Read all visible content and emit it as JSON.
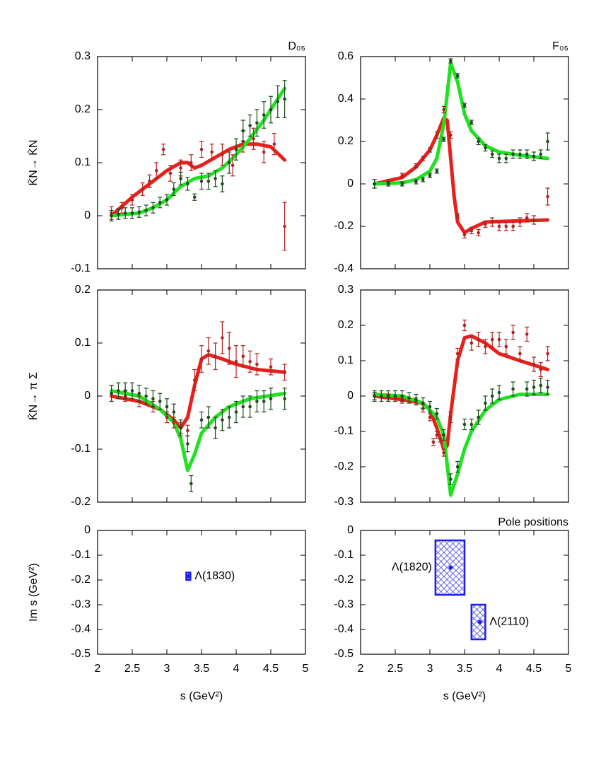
{
  "chart_data": [
    {
      "type": "errorbar",
      "title": "D₀₅",
      "ylabel": "K̄N→ K̄N",
      "xlim": [
        2,
        5
      ],
      "xticks": [
        2,
        2.5,
        3,
        3.5,
        4,
        4.5,
        5
      ],
      "xtick_labels": false,
      "ylim": [
        -0.1,
        0.3
      ],
      "yticks": [
        -0.1,
        0,
        0.1,
        0.2,
        0.3
      ],
      "series": [
        {
          "mode": "band",
          "color": "#e8201c",
          "x": [
            2.2,
            2.5,
            2.8,
            3.0,
            3.2,
            3.3,
            3.4,
            3.5,
            3.7,
            3.9,
            4.1,
            4.3,
            4.5,
            4.7
          ],
          "values": [
            0.0,
            0.035,
            0.065,
            0.085,
            0.1,
            0.1,
            0.09,
            0.095,
            0.11,
            0.125,
            0.135,
            0.135,
            0.13,
            0.105
          ]
        },
        {
          "mode": "band",
          "color": "#22e022",
          "x": [
            2.2,
            2.6,
            2.8,
            3.0,
            3.2,
            3.4,
            3.6,
            3.8,
            4.0,
            4.2,
            4.4,
            4.6,
            4.7
          ],
          "values": [
            0.0,
            0.005,
            0.015,
            0.03,
            0.055,
            0.07,
            0.075,
            0.09,
            0.115,
            0.145,
            0.18,
            0.22,
            0.24
          ]
        },
        {
          "mode": "points",
          "color": "#b22222",
          "x": [
            2.2,
            2.35,
            2.5,
            2.65,
            2.75,
            2.85,
            2.95,
            3.05,
            3.2,
            3.35,
            3.5,
            3.65,
            3.8,
            3.95,
            4.1,
            4.25,
            4.4,
            4.55,
            4.7
          ],
          "values": [
            0.005,
            0.015,
            0.03,
            0.05,
            0.065,
            0.085,
            0.125,
            0.08,
            0.09,
            0.1,
            0.125,
            0.12,
            0.115,
            0.095,
            0.14,
            0.145,
            0.12,
            0.135,
            -0.02
          ],
          "errors": [
            0.012,
            0.01,
            0.01,
            0.012,
            0.012,
            0.015,
            0.01,
            0.015,
            0.015,
            0.015,
            0.015,
            0.015,
            0.02,
            0.02,
            0.02,
            0.02,
            0.02,
            0.02,
            0.045
          ]
        },
        {
          "mode": "points",
          "color": "#1c4d1c",
          "x": [
            2.2,
            2.3,
            2.4,
            2.5,
            2.6,
            2.7,
            2.8,
            2.9,
            3.0,
            3.1,
            3.2,
            3.3,
            3.4,
            3.5,
            3.6,
            3.7,
            3.8,
            3.9,
            4.0,
            4.1,
            4.2,
            4.3,
            4.4,
            4.5,
            4.6,
            4.7
          ],
          "values": [
            0.0,
            0.003,
            0.005,
            0.005,
            0.007,
            0.01,
            0.015,
            0.025,
            0.03,
            0.05,
            0.07,
            0.06,
            0.035,
            0.065,
            0.065,
            0.07,
            0.06,
            0.1,
            0.125,
            0.16,
            0.17,
            0.175,
            0.19,
            0.2,
            0.215,
            0.22
          ],
          "errors": [
            0.01,
            0.01,
            0.01,
            0.01,
            0.01,
            0.01,
            0.01,
            0.01,
            0.01,
            0.012,
            0.012,
            0.012,
            0.006,
            0.015,
            0.015,
            0.015,
            0.015,
            0.02,
            0.02,
            0.02,
            0.02,
            0.025,
            0.025,
            0.025,
            0.03,
            0.035
          ]
        }
      ]
    },
    {
      "type": "errorbar",
      "title": "F₀₅",
      "xlim": [
        2,
        5
      ],
      "xticks": [
        2,
        2.5,
        3,
        3.5,
        4,
        4.5,
        5
      ],
      "xtick_labels": false,
      "ylim": [
        -0.4,
        0.6
      ],
      "yticks": [
        -0.4,
        -0.2,
        0,
        0.2,
        0.4,
        0.6
      ],
      "series": [
        {
          "mode": "band",
          "color": "#e8201c",
          "x": [
            2.2,
            2.6,
            2.8,
            3.0,
            3.1,
            3.2,
            3.25,
            3.3,
            3.35,
            3.4,
            3.5,
            3.6,
            3.8,
            4.2,
            4.7
          ],
          "values": [
            0.0,
            0.03,
            0.08,
            0.16,
            0.23,
            0.31,
            0.3,
            0.12,
            -0.06,
            -0.18,
            -0.23,
            -0.21,
            -0.18,
            -0.175,
            -0.17
          ]
        },
        {
          "mode": "band",
          "color": "#22e022",
          "x": [
            2.2,
            2.6,
            2.8,
            3.0,
            3.1,
            3.2,
            3.3,
            3.4,
            3.5,
            3.6,
            3.8,
            4.0,
            4.3,
            4.7
          ],
          "values": [
            0.0,
            0.005,
            0.02,
            0.06,
            0.12,
            0.28,
            0.57,
            0.48,
            0.33,
            0.25,
            0.18,
            0.15,
            0.135,
            0.12
          ]
        },
        {
          "mode": "points",
          "color": "#b22222",
          "x": [
            2.2,
            2.4,
            2.6,
            2.8,
            2.9,
            3.0,
            3.1,
            3.2,
            3.3,
            3.4,
            3.5,
            3.6,
            3.7,
            3.8,
            3.9,
            4.0,
            4.1,
            4.2,
            4.3,
            4.4,
            4.5,
            4.7
          ],
          "values": [
            0.0,
            0.01,
            0.04,
            0.085,
            0.12,
            0.16,
            0.23,
            0.35,
            0.23,
            -0.15,
            -0.24,
            -0.22,
            -0.23,
            -0.19,
            -0.18,
            -0.2,
            -0.2,
            -0.2,
            -0.18,
            -0.16,
            -0.17,
            -0.06
          ],
          "errors": [
            0.02,
            0.01,
            0.01,
            0.01,
            0.01,
            0.01,
            0.015,
            0.015,
            0.015,
            0.01,
            0.015,
            0.015,
            0.015,
            0.015,
            0.02,
            0.02,
            0.02,
            0.02,
            0.02,
            0.02,
            0.02,
            0.04
          ]
        },
        {
          "mode": "points",
          "color": "#1c4d1c",
          "x": [
            2.2,
            2.4,
            2.6,
            2.8,
            2.9,
            3.0,
            3.1,
            3.2,
            3.3,
            3.4,
            3.5,
            3.6,
            3.7,
            3.8,
            3.9,
            4.0,
            4.1,
            4.2,
            4.3,
            4.4,
            4.5,
            4.6,
            4.7
          ],
          "values": [
            0.0,
            0.0,
            0.0,
            0.01,
            0.02,
            0.04,
            0.06,
            0.21,
            0.58,
            0.51,
            0.37,
            0.29,
            0.2,
            0.17,
            0.14,
            0.12,
            0.12,
            0.14,
            0.14,
            0.14,
            0.13,
            0.14,
            0.2
          ],
          "errors": [
            0.02,
            0.01,
            0.01,
            0.01,
            0.01,
            0.01,
            0.01,
            0.01,
            0.01,
            0.01,
            0.01,
            0.01,
            0.015,
            0.015,
            0.015,
            0.02,
            0.02,
            0.02,
            0.02,
            0.02,
            0.02,
            0.02,
            0.04
          ]
        }
      ]
    },
    {
      "type": "errorbar",
      "ylabel": "K̄N→ π Σ",
      "xlim": [
        2,
        5
      ],
      "xticks": [
        2,
        2.5,
        3,
        3.5,
        4,
        4.5,
        5
      ],
      "xtick_labels": false,
      "ylim": [
        -0.2,
        0.2
      ],
      "yticks": [
        -0.2,
        -0.1,
        0,
        0.1,
        0.2
      ],
      "series": [
        {
          "mode": "band",
          "color": "#e8201c",
          "x": [
            2.2,
            2.6,
            2.9,
            3.1,
            3.2,
            3.3,
            3.4,
            3.5,
            3.6,
            3.8,
            4.0,
            4.3,
            4.7
          ],
          "values": [
            0.0,
            -0.01,
            -0.025,
            -0.045,
            -0.06,
            -0.04,
            0.02,
            0.07,
            0.078,
            0.07,
            0.06,
            0.05,
            0.045
          ]
        },
        {
          "mode": "band",
          "color": "#22e022",
          "x": [
            2.2,
            2.6,
            2.9,
            3.1,
            3.2,
            3.3,
            3.4,
            3.5,
            3.7,
            3.9,
            4.2,
            4.7
          ],
          "values": [
            0.01,
            0.0,
            -0.025,
            -0.05,
            -0.08,
            -0.14,
            -0.11,
            -0.07,
            -0.04,
            -0.02,
            -0.005,
            0.005
          ]
        },
        {
          "mode": "points",
          "color": "#b22222",
          "x": [
            2.2,
            2.4,
            2.6,
            2.8,
            3.0,
            3.1,
            3.2,
            3.3,
            3.4,
            3.5,
            3.6,
            3.7,
            3.8,
            3.9,
            4.0,
            4.1,
            4.2,
            4.3,
            4.5,
            4.7
          ],
          "values": [
            0.005,
            0.0,
            -0.01,
            -0.02,
            -0.04,
            -0.05,
            -0.06,
            -0.065,
            0.03,
            0.07,
            0.085,
            0.075,
            0.11,
            0.09,
            0.065,
            0.075,
            0.065,
            0.06,
            0.055,
            0.045
          ],
          "errors": [
            0.015,
            0.01,
            0.01,
            0.01,
            0.01,
            0.01,
            0.01,
            0.01,
            0.02,
            0.025,
            0.025,
            0.025,
            0.03,
            0.03,
            0.03,
            0.02,
            0.02,
            0.02,
            0.015,
            0.015
          ]
        },
        {
          "mode": "points",
          "color": "#1c4d1c",
          "x": [
            2.2,
            2.3,
            2.4,
            2.5,
            2.6,
            2.7,
            2.8,
            2.9,
            3.0,
            3.1,
            3.2,
            3.3,
            3.35,
            3.5,
            3.6,
            3.7,
            3.8,
            3.9,
            4.0,
            4.1,
            4.2,
            4.3,
            4.4,
            4.5,
            4.7
          ],
          "values": [
            0.005,
            0.01,
            0.01,
            0.01,
            0.005,
            0.0,
            -0.005,
            -0.01,
            -0.02,
            -0.03,
            -0.06,
            -0.09,
            -0.165,
            -0.045,
            -0.04,
            -0.06,
            -0.045,
            -0.04,
            -0.03,
            -0.02,
            -0.02,
            -0.01,
            -0.01,
            -0.005,
            -0.005
          ],
          "errors": [
            0.015,
            0.015,
            0.015,
            0.015,
            0.015,
            0.015,
            0.015,
            0.015,
            0.015,
            0.015,
            0.015,
            0.015,
            0.015,
            0.015,
            0.02,
            0.02,
            0.02,
            0.02,
            0.02,
            0.02,
            0.02,
            0.02,
            0.02,
            0.02,
            0.02
          ]
        }
      ]
    },
    {
      "type": "errorbar",
      "xlim": [
        2,
        5
      ],
      "xticks": [
        2,
        2.5,
        3,
        3.5,
        4,
        4.5,
        5
      ],
      "xtick_labels": false,
      "ylim": [
        -0.3,
        0.3
      ],
      "yticks": [
        -0.3,
        -0.2,
        -0.1,
        0,
        0.1,
        0.2,
        0.3
      ],
      "series": [
        {
          "mode": "band",
          "color": "#e8201c",
          "x": [
            2.2,
            2.6,
            2.9,
            3.0,
            3.1,
            3.2,
            3.25,
            3.3,
            3.4,
            3.5,
            3.6,
            3.8,
            4.0,
            4.3,
            4.7
          ],
          "values": [
            0.0,
            -0.01,
            -0.02,
            -0.04,
            -0.09,
            -0.15,
            -0.14,
            -0.05,
            0.1,
            0.165,
            0.17,
            0.15,
            0.12,
            0.1,
            0.075
          ]
        },
        {
          "mode": "band",
          "color": "#22e022",
          "x": [
            2.2,
            2.6,
            2.9,
            3.1,
            3.2,
            3.3,
            3.4,
            3.5,
            3.6,
            3.8,
            4.0,
            4.3,
            4.7
          ],
          "values": [
            0.005,
            0.0,
            -0.02,
            -0.06,
            -0.11,
            -0.28,
            -0.22,
            -0.15,
            -0.1,
            -0.04,
            -0.01,
            0.005,
            0.005
          ]
        },
        {
          "mode": "points",
          "color": "#b22222",
          "x": [
            2.2,
            2.4,
            2.6,
            2.8,
            2.9,
            3.0,
            3.05,
            3.1,
            3.15,
            3.2,
            3.3,
            3.4,
            3.5,
            3.6,
            3.7,
            3.8,
            3.9,
            4.0,
            4.1,
            4.2,
            4.3,
            4.4,
            4.5,
            4.6,
            4.7
          ],
          "values": [
            0.0,
            -0.005,
            -0.01,
            -0.015,
            -0.035,
            -0.06,
            -0.13,
            -0.11,
            -0.12,
            -0.16,
            -0.06,
            0.12,
            0.2,
            0.15,
            0.16,
            0.14,
            0.16,
            0.16,
            0.14,
            0.18,
            0.12,
            0.175,
            0.09,
            0.075,
            0.12
          ],
          "errors": [
            0.01,
            0.01,
            0.01,
            0.01,
            0.01,
            0.01,
            0.01,
            0.01,
            0.01,
            0.01,
            0.015,
            0.015,
            0.015,
            0.02,
            0.02,
            0.02,
            0.02,
            0.02,
            0.02,
            0.02,
            0.02,
            0.02,
            0.02,
            0.02,
            0.02
          ]
        },
        {
          "mode": "points",
          "color": "#1c4d1c",
          "x": [
            2.2,
            2.3,
            2.4,
            2.5,
            2.6,
            2.7,
            2.8,
            2.9,
            3.0,
            3.1,
            3.2,
            3.3,
            3.4,
            3.5,
            3.6,
            3.7,
            3.8,
            3.9,
            4.0,
            4.2,
            4.4,
            4.5,
            4.6,
            4.7
          ],
          "values": [
            0.0,
            0.0,
            0.0,
            0.0,
            0.0,
            -0.005,
            -0.01,
            -0.02,
            -0.03,
            -0.05,
            -0.11,
            -0.235,
            -0.2,
            -0.08,
            -0.08,
            -0.06,
            -0.02,
            0.0,
            0.01,
            0.02,
            0.02,
            0.025,
            0.03,
            0.025
          ],
          "errors": [
            0.015,
            0.015,
            0.015,
            0.015,
            0.015,
            0.015,
            0.015,
            0.015,
            0.015,
            0.015,
            0.015,
            0.015,
            0.015,
            0.015,
            0.015,
            0.02,
            0.02,
            0.02,
            0.02,
            0.02,
            0.02,
            0.02,
            0.02,
            0.02
          ]
        }
      ]
    },
    {
      "type": "poles",
      "ylabel": "Im s (GeV²)",
      "xlabel": "s (GeV²)",
      "xlim": [
        2,
        5
      ],
      "xticks": [
        2,
        2.5,
        3,
        3.5,
        4,
        4.5,
        5
      ],
      "xtick_labels": true,
      "ylim": [
        -0.5,
        0
      ],
      "yticks": [
        -0.5,
        -0.4,
        -0.3,
        -0.2,
        -0.1,
        0
      ],
      "color": "#1f1fe6",
      "poles": [
        {
          "label": "Λ(1830)",
          "x": 3.31,
          "y": -0.185,
          "x_range": [
            3.28,
            3.34
          ],
          "y_range": [
            -0.2,
            -0.17
          ],
          "label_side": "right"
        }
      ]
    },
    {
      "type": "poles",
      "title": "Pole positions",
      "xlabel": "s (GeV²)",
      "xlim": [
        2,
        5
      ],
      "xticks": [
        2,
        2.5,
        3,
        3.5,
        4,
        4.5,
        5
      ],
      "xtick_labels": true,
      "ylim": [
        -0.5,
        0
      ],
      "yticks": [
        -0.5,
        -0.4,
        -0.3,
        -0.2,
        -0.1,
        0
      ],
      "color": "#1f1fe6",
      "poles": [
        {
          "label": "Λ(1820)",
          "x": 3.3,
          "y": -0.15,
          "x_range": [
            3.08,
            3.5
          ],
          "y_range": [
            -0.26,
            -0.04
          ],
          "label_side": "left"
        },
        {
          "label": "Λ(2110)",
          "x": 3.72,
          "y": -0.37,
          "x_range": [
            3.6,
            3.8
          ],
          "y_range": [
            -0.44,
            -0.3
          ],
          "label_side": "right"
        }
      ]
    }
  ]
}
